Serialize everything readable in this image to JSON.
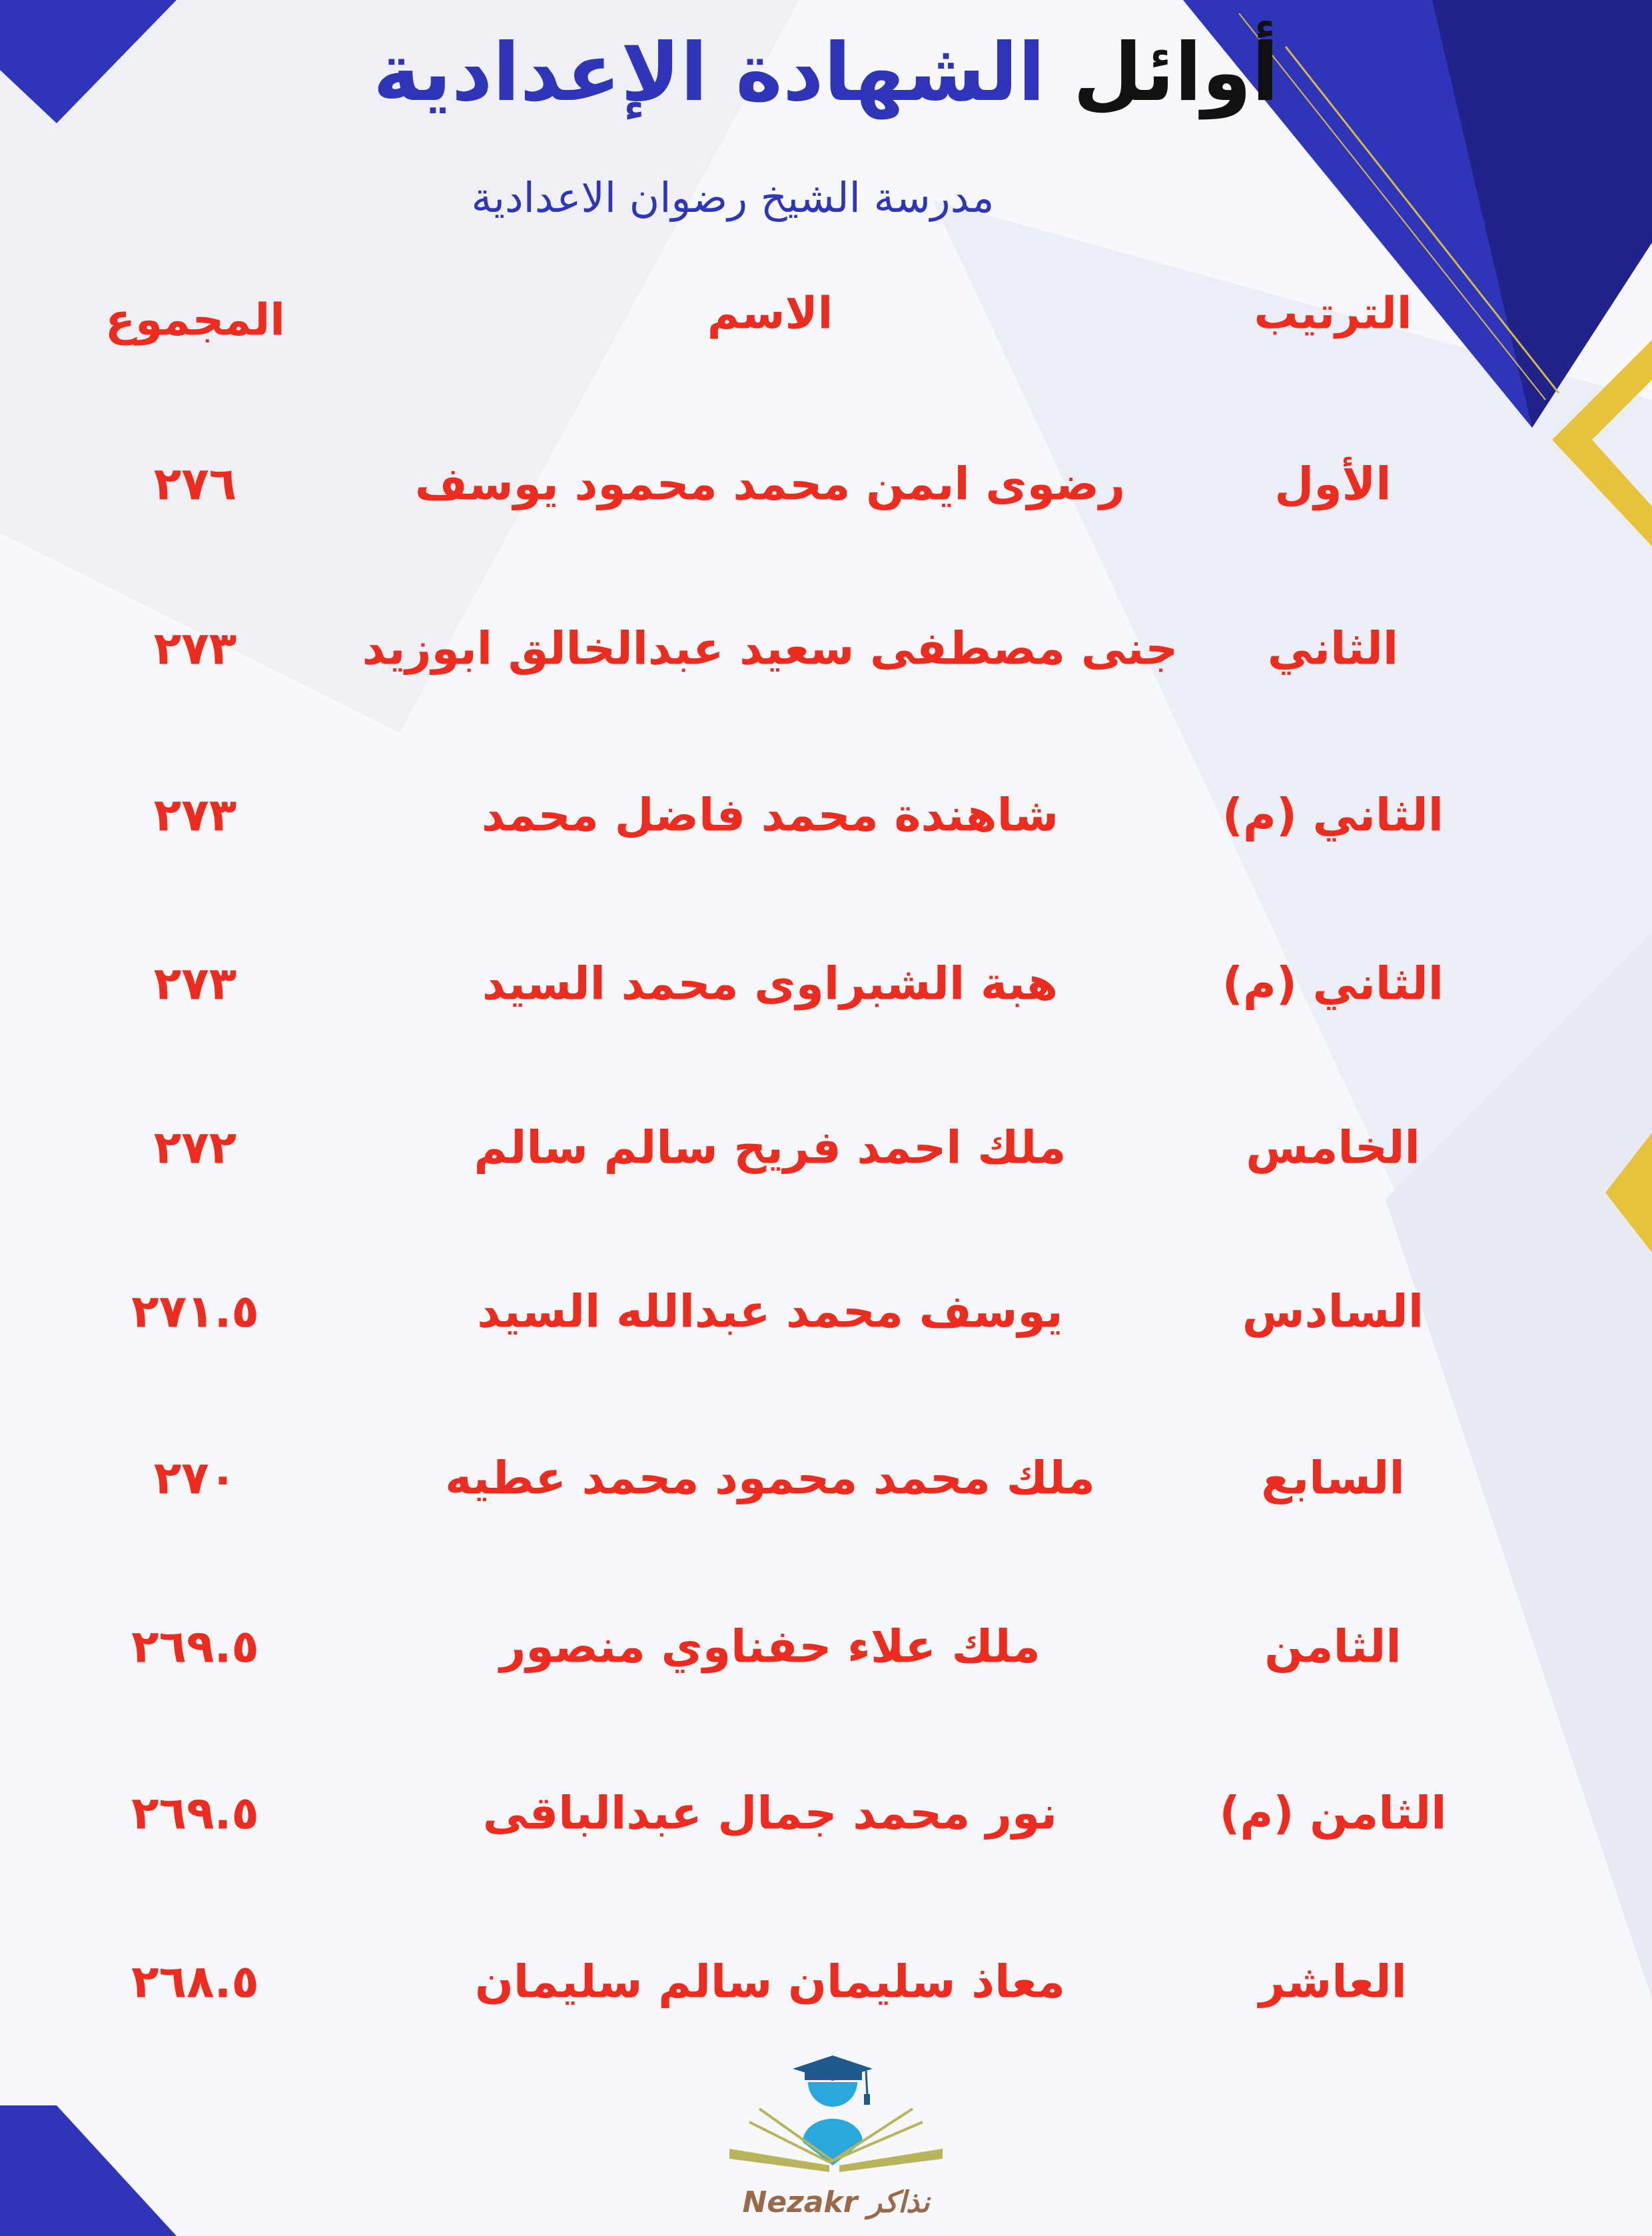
{
  "header": {
    "title_part1": "أوائل",
    "title_part2": "الشهادة الإعدادية",
    "subtitle": "مدرسة الشيخ رضوان الاعدادية"
  },
  "table": {
    "columns": [
      "الترتيب",
      "الاسم",
      "المجموع"
    ],
    "rows": [
      {
        "rank": "الأول",
        "name": "رضوى ايمن محمد محمود يوسف",
        "total": "٢٧٦"
      },
      {
        "rank": "الثاني",
        "name": "جنى مصطفى سعيد عبدالخالق ابوزيد",
        "total": "٢٧٣"
      },
      {
        "rank": "الثاني (م)",
        "name": "شاهندة محمد فاضل محمد",
        "total": "٢٧٣"
      },
      {
        "rank": "الثاني (م)",
        "name": "هبة الشبراوى محمد السيد",
        "total": "٢٧٣"
      },
      {
        "rank": "الخامس",
        "name": "ملك احمد فريح سالم سالم",
        "total": "٢٧٢"
      },
      {
        "rank": "السادس",
        "name": "يوسف محمد عبدالله السيد",
        "total": "٢٧١.٥"
      },
      {
        "rank": "السابع",
        "name": "ملك محمد محمود محمد عطيه",
        "total": "٢٧٠"
      },
      {
        "rank": "الثامن",
        "name": "ملك علاء حفناوي منصور",
        "total": "٢٦٩.٥"
      },
      {
        "rank": "الثامن (م)",
        "name": "نور محمد جمال عبدالباقى",
        "total": "٢٦٩.٥"
      },
      {
        "rank": "العاشر",
        "name": "معاذ سليمان سالم سليمان",
        "total": "٢٦٨.٥"
      }
    ]
  },
  "logo": {
    "text_latin": "Nezakr",
    "text_arabic": "نذاكر"
  },
  "colors": {
    "accent_blue": "#2f35b8",
    "row_text": "#ee2b1f",
    "gold": "#e8c23a"
  }
}
